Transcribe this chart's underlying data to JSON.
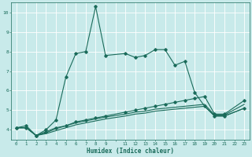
{
  "xlabel": "Humidex (Indice chaleur)",
  "ylabel": "",
  "background_color": "#c8eaea",
  "grid_color": "#ffffff",
  "line_color": "#1a6b5a",
  "xlim": [
    -0.5,
    23.5
  ],
  "ylim": [
    3.5,
    10.5
  ],
  "series1_x": [
    0,
    1,
    2,
    3,
    4,
    5,
    6,
    7,
    8,
    9,
    11,
    12,
    13,
    14,
    15,
    16,
    17,
    18,
    19,
    20,
    21,
    23
  ],
  "series1_y": [
    4.1,
    4.2,
    3.7,
    4.0,
    4.5,
    6.7,
    7.9,
    8.0,
    10.3,
    7.8,
    7.9,
    7.7,
    7.8,
    8.1,
    8.1,
    7.3,
    7.5,
    5.9,
    5.2,
    4.7,
    4.7,
    5.1
  ],
  "series2_x": [
    0,
    1,
    2,
    3,
    4,
    5,
    6,
    7,
    8,
    9,
    11,
    12,
    13,
    14,
    15,
    16,
    17,
    18,
    19,
    20,
    21,
    23
  ],
  "series2_y": [
    4.1,
    4.1,
    3.7,
    3.9,
    4.1,
    4.2,
    4.4,
    4.5,
    4.6,
    4.7,
    4.9,
    5.0,
    5.1,
    5.2,
    5.3,
    5.4,
    5.5,
    5.6,
    5.7,
    4.8,
    4.8,
    5.5
  ],
  "series3_x": [
    0,
    1,
    2,
    3,
    4,
    5,
    6,
    7,
    8,
    9,
    11,
    12,
    13,
    14,
    15,
    16,
    17,
    18,
    19,
    20,
    21,
    23
  ],
  "series3_y": [
    4.1,
    4.1,
    3.7,
    3.85,
    4.05,
    4.2,
    4.35,
    4.45,
    4.55,
    4.65,
    4.8,
    4.9,
    4.95,
    5.05,
    5.1,
    5.15,
    5.2,
    5.25,
    5.3,
    4.75,
    4.75,
    5.3
  ],
  "series4_x": [
    0,
    1,
    2,
    3,
    4,
    5,
    6,
    7,
    8,
    9,
    11,
    12,
    13,
    14,
    15,
    16,
    17,
    18,
    19,
    20,
    21,
    23
  ],
  "series4_y": [
    4.1,
    4.1,
    3.7,
    3.8,
    3.95,
    4.1,
    4.25,
    4.35,
    4.45,
    4.55,
    4.7,
    4.8,
    4.85,
    4.95,
    5.0,
    5.05,
    5.1,
    5.15,
    5.2,
    4.7,
    4.7,
    5.1
  ]
}
